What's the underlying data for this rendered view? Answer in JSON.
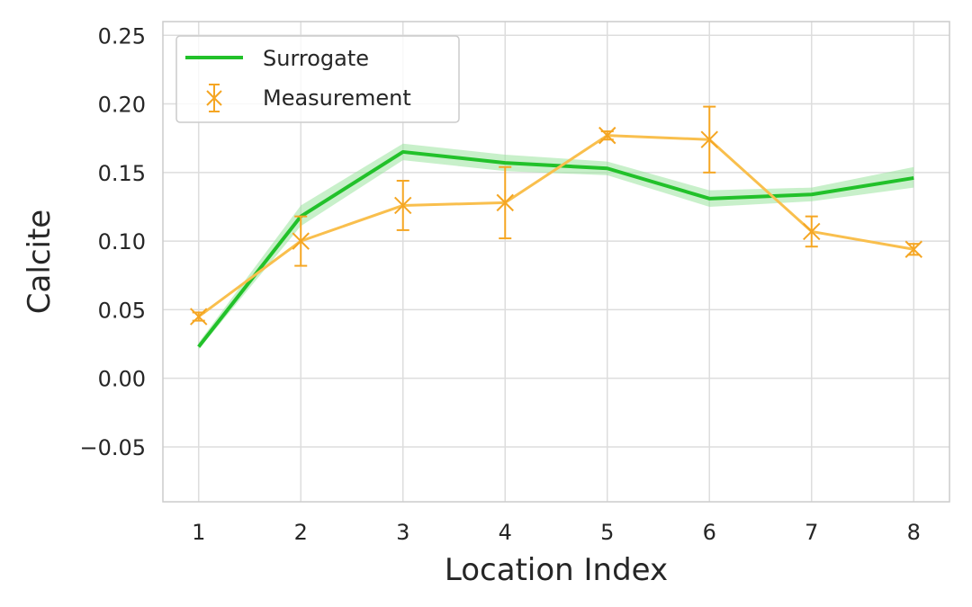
{
  "chart_data": {
    "type": "line",
    "title": "",
    "xlabel": "Location Index",
    "ylabel": "Calcite",
    "xlim": [
      0.65,
      8.35
    ],
    "ylim": [
      -0.09,
      0.26
    ],
    "xticks": [
      1,
      2,
      3,
      4,
      5,
      6,
      7,
      8
    ],
    "xtick_labels": [
      "1",
      "2",
      "3",
      "4",
      "5",
      "6",
      "7",
      "8"
    ],
    "yticks": [
      -0.05,
      0.0,
      0.05,
      0.1,
      0.15,
      0.2,
      0.25
    ],
    "ytick_labels": [
      "−0.05",
      "0.00",
      "0.05",
      "0.10",
      "0.15",
      "0.20",
      "0.25"
    ],
    "grid": true,
    "legend_position": "top-left",
    "series": [
      {
        "name": "Surrogate",
        "kind": "line_with_band",
        "color": "#22c12a",
        "band_color": "#9be39f",
        "x": [
          1,
          2,
          3,
          4,
          5,
          6,
          7,
          8
        ],
        "y": [
          0.023,
          0.118,
          0.165,
          0.157,
          0.153,
          0.131,
          0.134,
          0.146
        ],
        "band_lower": [
          0.021,
          0.111,
          0.159,
          0.151,
          0.148,
          0.125,
          0.129,
          0.139
        ],
        "band_upper": [
          0.026,
          0.126,
          0.171,
          0.163,
          0.158,
          0.137,
          0.139,
          0.154
        ]
      },
      {
        "name": "Measurement",
        "kind": "errorbar",
        "color": "#f5a623",
        "line_color": "#f9bf4d",
        "marker": "x",
        "x": [
          1,
          2,
          3,
          4,
          5,
          6,
          7,
          8
        ],
        "y": [
          0.045,
          0.1,
          0.126,
          0.128,
          0.177,
          0.174,
          0.107,
          0.094
        ],
        "yerr_lower": [
          0.003,
          0.018,
          0.018,
          0.026,
          0.003,
          0.024,
          0.011,
          0.004
        ],
        "yerr_upper": [
          0.003,
          0.018,
          0.018,
          0.026,
          0.003,
          0.024,
          0.011,
          0.004
        ]
      }
    ]
  }
}
